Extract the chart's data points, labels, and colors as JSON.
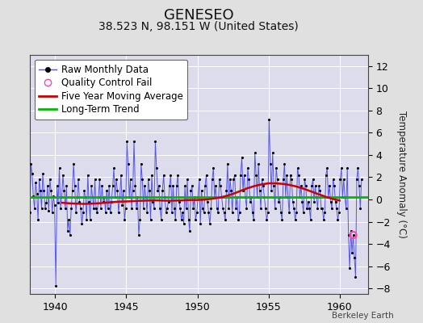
{
  "title": "GENESEO",
  "subtitle": "38.523 N, 98.151 W (United States)",
  "ylabel": "Temperature Anomaly (°C)",
  "credit": "Berkeley Earth",
  "xlim": [
    1938.2,
    1962.0
  ],
  "ylim": [
    -8.5,
    13.0
  ],
  "yticks": [
    -8,
    -6,
    -4,
    -2,
    0,
    2,
    4,
    6,
    8,
    10,
    12
  ],
  "xticks": [
    1940,
    1945,
    1950,
    1955,
    1960
  ],
  "bg_color": "#e0e0e0",
  "plot_bg_color": "#dcdcec",
  "grid_color": "#ffffff",
  "raw_line_color": "#5555ee",
  "raw_dot_color": "#000000",
  "moving_avg_color": "#cc0000",
  "trend_color": "#00bb00",
  "qc_fail_color": "#ff44aa",
  "title_fontsize": 13,
  "subtitle_fontsize": 10,
  "legend_fontsize": 8.5,
  "tick_fontsize": 9,
  "ylabel_fontsize": 8.5,
  "raw_data": {
    "times": [
      1938.042,
      1938.125,
      1938.208,
      1938.292,
      1938.375,
      1938.458,
      1938.542,
      1938.625,
      1938.708,
      1938.792,
      1938.875,
      1938.958,
      1939.042,
      1939.125,
      1939.208,
      1939.292,
      1939.375,
      1939.458,
      1939.542,
      1939.625,
      1939.708,
      1939.792,
      1939.875,
      1939.958,
      1940.042,
      1940.125,
      1940.208,
      1940.292,
      1940.375,
      1940.458,
      1940.542,
      1940.625,
      1940.708,
      1940.792,
      1940.875,
      1940.958,
      1941.042,
      1941.125,
      1941.208,
      1941.292,
      1941.375,
      1941.458,
      1941.542,
      1941.625,
      1941.708,
      1941.792,
      1941.875,
      1941.958,
      1942.042,
      1942.125,
      1942.208,
      1942.292,
      1942.375,
      1942.458,
      1942.542,
      1942.625,
      1942.708,
      1942.792,
      1942.875,
      1942.958,
      1943.042,
      1943.125,
      1943.208,
      1943.292,
      1943.375,
      1943.458,
      1943.542,
      1943.625,
      1943.708,
      1943.792,
      1943.875,
      1943.958,
      1944.042,
      1944.125,
      1944.208,
      1944.292,
      1944.375,
      1944.458,
      1944.542,
      1944.625,
      1944.708,
      1944.792,
      1944.875,
      1944.958,
      1945.042,
      1945.125,
      1945.208,
      1945.292,
      1945.375,
      1945.458,
      1945.542,
      1945.625,
      1945.708,
      1945.792,
      1945.875,
      1945.958,
      1946.042,
      1946.125,
      1946.208,
      1946.292,
      1946.375,
      1946.458,
      1946.542,
      1946.625,
      1946.708,
      1946.792,
      1946.875,
      1946.958,
      1947.042,
      1947.125,
      1947.208,
      1947.292,
      1947.375,
      1947.458,
      1947.542,
      1947.625,
      1947.708,
      1947.792,
      1947.875,
      1947.958,
      1948.042,
      1948.125,
      1948.208,
      1948.292,
      1948.375,
      1948.458,
      1948.542,
      1948.625,
      1948.708,
      1948.792,
      1948.875,
      1948.958,
      1949.042,
      1949.125,
      1949.208,
      1949.292,
      1949.375,
      1949.458,
      1949.542,
      1949.625,
      1949.708,
      1949.792,
      1949.875,
      1949.958,
      1950.042,
      1950.125,
      1950.208,
      1950.292,
      1950.375,
      1950.458,
      1950.542,
      1950.625,
      1950.708,
      1950.792,
      1950.875,
      1950.958,
      1951.042,
      1951.125,
      1951.208,
      1951.292,
      1951.375,
      1951.458,
      1951.542,
      1951.625,
      1951.708,
      1951.792,
      1951.875,
      1951.958,
      1952.042,
      1952.125,
      1952.208,
      1952.292,
      1952.375,
      1952.458,
      1952.542,
      1952.625,
      1952.708,
      1952.792,
      1952.875,
      1952.958,
      1953.042,
      1953.125,
      1953.208,
      1953.292,
      1953.375,
      1953.458,
      1953.542,
      1953.625,
      1953.708,
      1953.792,
      1953.875,
      1953.958,
      1954.042,
      1954.125,
      1954.208,
      1954.292,
      1954.375,
      1954.458,
      1954.542,
      1954.625,
      1954.708,
      1954.792,
      1954.875,
      1954.958,
      1955.042,
      1955.125,
      1955.208,
      1955.292,
      1955.375,
      1955.458,
      1955.542,
      1955.625,
      1955.708,
      1955.792,
      1955.875,
      1955.958,
      1956.042,
      1956.125,
      1956.208,
      1956.292,
      1956.375,
      1956.458,
      1956.542,
      1956.625,
      1956.708,
      1956.792,
      1956.875,
      1956.958,
      1957.042,
      1957.125,
      1957.208,
      1957.292,
      1957.375,
      1957.458,
      1957.542,
      1957.625,
      1957.708,
      1957.792,
      1957.875,
      1957.958,
      1958.042,
      1958.125,
      1958.208,
      1958.292,
      1958.375,
      1958.458,
      1958.542,
      1958.625,
      1958.708,
      1958.792,
      1958.875,
      1958.958,
      1959.042,
      1959.125,
      1959.208,
      1959.292,
      1959.375,
      1959.458,
      1959.542,
      1959.625,
      1959.708,
      1959.792,
      1959.875,
      1959.958,
      1960.042,
      1960.125,
      1960.208,
      1960.292,
      1960.375,
      1960.458,
      1960.542,
      1960.625,
      1960.708,
      1960.792,
      1960.875,
      1960.958,
      1961.042,
      1961.125,
      1961.208,
      1961.292,
      1961.375,
      1961.458,
      1961.542
    ],
    "values": [
      2.2,
      1.8,
      -1.2,
      3.2,
      2.3,
      0.3,
      -0.8,
      1.5,
      0.5,
      -1.8,
      1.8,
      0.8,
      -0.8,
      2.3,
      0.8,
      -0.8,
      -0.3,
      1.2,
      -1.0,
      1.8,
      0.8,
      -1.2,
      0.3,
      -0.5,
      -7.8,
      1.2,
      -0.3,
      2.8,
      -0.8,
      0.2,
      2.2,
      0.8,
      -0.8,
      1.2,
      -2.8,
      -1.8,
      -3.2,
      -0.8,
      0.8,
      3.2,
      1.2,
      -1.2,
      0.2,
      1.8,
      -0.2,
      -0.8,
      -2.2,
      -1.2,
      0.8,
      0.2,
      -1.8,
      2.2,
      -0.2,
      -1.8,
      1.2,
      0.2,
      -0.8,
      1.8,
      -0.8,
      -1.2,
      0.2,
      1.8,
      -0.8,
      1.2,
      -0.2,
      0.2,
      -1.2,
      0.8,
      -0.8,
      1.2,
      -1.2,
      -0.2,
      1.2,
      2.8,
      0.2,
      1.8,
      0.8,
      -1.2,
      0.2,
      2.2,
      -0.5,
      0.8,
      -1.8,
      -0.8,
      5.2,
      3.2,
      0.2,
      1.8,
      -0.8,
      0.8,
      5.2,
      1.2,
      -0.8,
      0.2,
      -3.2,
      -1.8,
      3.2,
      1.8,
      -0.8,
      1.2,
      0.2,
      -1.2,
      1.8,
      0.8,
      -1.8,
      2.2,
      -0.2,
      -0.8,
      5.2,
      2.8,
      0.8,
      1.2,
      -0.8,
      -1.8,
      0.8,
      2.2,
      0.2,
      -1.2,
      -0.8,
      -0.2,
      1.2,
      2.2,
      -1.2,
      1.2,
      -0.8,
      -1.8,
      1.2,
      2.2,
      -0.2,
      -0.8,
      -1.8,
      -1.2,
      -2.2,
      1.2,
      -0.8,
      1.8,
      -1.8,
      -2.8,
      0.8,
      1.2,
      -0.8,
      0.2,
      -1.8,
      -1.2,
      0.2,
      1.8,
      -2.2,
      0.8,
      -0.8,
      -1.2,
      1.2,
      2.2,
      -0.2,
      -1.2,
      -2.2,
      -0.8,
      1.8,
      2.8,
      0.2,
      1.2,
      -0.8,
      -1.2,
      1.8,
      1.2,
      0.2,
      -0.8,
      -1.2,
      -1.8,
      0.8,
      3.2,
      -0.8,
      1.8,
      0.8,
      -1.2,
      1.8,
      2.2,
      -0.8,
      0.2,
      -1.8,
      -1.2,
      2.2,
      3.8,
      0.8,
      2.2,
      0.2,
      -0.8,
      2.8,
      1.8,
      -0.2,
      0.2,
      -1.2,
      -1.8,
      4.2,
      2.2,
      0.2,
      3.2,
      0.8,
      -0.8,
      1.8,
      1.2,
      0.2,
      -0.8,
      -1.8,
      -1.2,
      7.2,
      3.2,
      0.8,
      4.2,
      1.2,
      -0.8,
      2.8,
      1.8,
      -0.2,
      0.2,
      -1.2,
      -1.8,
      1.8,
      3.2,
      0.2,
      2.2,
      0.2,
      -1.2,
      2.2,
      1.8,
      -0.2,
      -0.8,
      -1.8,
      -1.2,
      2.8,
      2.2,
      0.2,
      1.2,
      -0.2,
      -1.2,
      1.8,
      1.2,
      -0.8,
      -0.2,
      -0.8,
      -1.8,
      1.2,
      1.8,
      -0.2,
      1.2,
      0.2,
      -0.8,
      1.2,
      0.8,
      -0.8,
      -0.8,
      -1.8,
      -1.2,
      2.2,
      2.8,
      0.2,
      1.2,
      -0.2,
      -0.8,
      1.8,
      1.2,
      -0.2,
      -0.8,
      -1.8,
      -1.2,
      1.8,
      2.8,
      0.2,
      1.8,
      0.2,
      -0.8,
      2.8,
      -3.2,
      -6.2,
      -2.8,
      -4.8,
      -3.2,
      -5.2,
      -7.0,
      1.8,
      2.8,
      1.2,
      -0.8,
      1.8
    ]
  },
  "moving_avg": {
    "times": [
      1940.5,
      1941.0,
      1941.5,
      1942.0,
      1942.5,
      1943.0,
      1943.5,
      1944.0,
      1944.5,
      1945.0,
      1945.5,
      1946.0,
      1946.5,
      1947.0,
      1947.5,
      1948.0,
      1948.5,
      1949.0,
      1949.5,
      1950.0,
      1950.5,
      1951.0,
      1951.5,
      1952.0,
      1952.5,
      1953.0,
      1953.5,
      1954.0,
      1954.5,
      1955.0,
      1955.5,
      1956.0,
      1956.5,
      1957.0,
      1957.5,
      1958.0,
      1958.5,
      1959.0,
      1959.5,
      1960.0
    ],
    "values": [
      -0.3,
      -0.35,
      -0.38,
      -0.4,
      -0.38,
      -0.35,
      -0.3,
      -0.25,
      -0.2,
      -0.18,
      -0.15,
      -0.12,
      -0.1,
      -0.08,
      -0.1,
      -0.12,
      -0.1,
      -0.08,
      -0.05,
      -0.05,
      -0.02,
      0.05,
      0.15,
      0.3,
      0.5,
      0.75,
      1.0,
      1.2,
      1.35,
      1.45,
      1.45,
      1.4,
      1.3,
      1.15,
      0.95,
      0.72,
      0.48,
      0.25,
      0.05,
      -0.1
    ]
  },
  "trend": {
    "times": [
      1938.2,
      1962.0
    ],
    "values": [
      0.18,
      0.18
    ]
  },
  "qc_fail_points": {
    "times": [
      1960.958
    ],
    "values": [
      -3.2
    ]
  }
}
